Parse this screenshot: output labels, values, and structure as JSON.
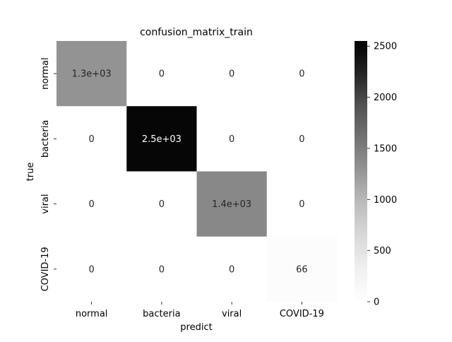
{
  "chart_data": {
    "type": "heatmap",
    "title": "confusion_matrix_train",
    "xlabel": "predict",
    "ylabel": "true",
    "x_categories": [
      "normal",
      "bacteria",
      "viral",
      "COVID-19"
    ],
    "y_categories": [
      "normal",
      "bacteria",
      "viral",
      "COVID-19"
    ],
    "values": [
      [
        1300,
        0,
        0,
        0
      ],
      [
        0,
        2500,
        0,
        0
      ],
      [
        0,
        0,
        1400,
        0
      ],
      [
        0,
        0,
        0,
        66
      ]
    ],
    "annotations": [
      [
        "1.3e+03",
        "0",
        "0",
        "0"
      ],
      [
        "0",
        "2.5e+03",
        "0",
        "0"
      ],
      [
        "0",
        "0",
        "1.4e+03",
        "0"
      ],
      [
        "0",
        "0",
        "0",
        "66"
      ]
    ],
    "colorbar": {
      "min": 0,
      "max": 2550,
      "ticks": [
        0,
        500,
        1000,
        1500,
        2000,
        2500
      ],
      "tick_labels": [
        "0",
        "500",
        "1000",
        "1500",
        "2000",
        "2500"
      ],
      "colormap": "Greys"
    }
  }
}
